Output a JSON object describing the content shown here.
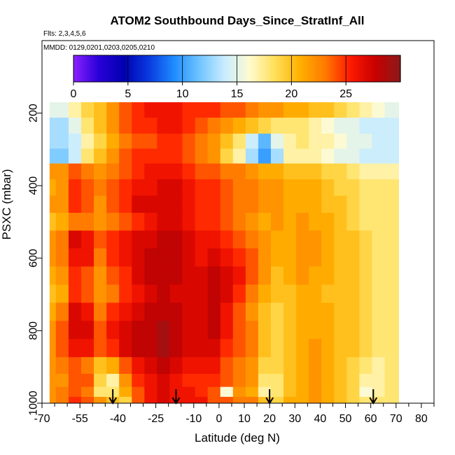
{
  "chart_data": {
    "type": "heatmap",
    "title": "ATOM2 Southbound Days_Since_StratInf_All",
    "flights_label": "Flts: 2,3,4,5,6",
    "dates_label": "MMDD: 0129,0201,0203,0205,0210",
    "xlabel": "Latitude (deg N)",
    "ylabel": "PSXC (mbar)",
    "xlim": [
      -70,
      85
    ],
    "ylim": [
      1000,
      0
    ],
    "x_ticks": [
      -70,
      -55,
      -40,
      -25,
      -10,
      0,
      10,
      20,
      30,
      40,
      50,
      60,
      70,
      80
    ],
    "x_minor_ticks": [
      -65,
      -60,
      -50,
      -45,
      -35,
      -30,
      -20,
      -15,
      -5,
      5,
      15,
      25,
      35,
      45,
      55,
      65,
      75,
      85
    ],
    "y_ticks": [
      200,
      400,
      600,
      800,
      1000
    ],
    "colorbar": {
      "range": [
        0,
        30
      ],
      "ticks": [
        0,
        5,
        10,
        15,
        20,
        25
      ],
      "colors": [
        "#8b21ff",
        "#2a00d9",
        "#0000b0",
        "#0a3ae0",
        "#1e8cff",
        "#6fc4ff",
        "#c8ecff",
        "#fffbd1",
        "#ffe05a",
        "#ffb000",
        "#ff7a00",
        "#ff1a00",
        "#c80000",
        "#8b1a1a"
      ]
    },
    "arrows_lat": [
      -42,
      -17,
      20,
      61
    ],
    "data_extent": {
      "lat_min": -67,
      "lat_max": 71,
      "p_top": 170,
      "p_bottom": 1000
    },
    "lat_bands": [
      {
        "lat": -67,
        "values": [
          15,
          13,
          13,
          12,
          22,
          21,
          22,
          20,
          22,
          22,
          21,
          20,
          21,
          22,
          22,
          22,
          22,
          22,
          22
        ]
      },
      {
        "lat": -62,
        "values": [
          15,
          13,
          13,
          12,
          22,
          22,
          22,
          21,
          23,
          23,
          22,
          21,
          23,
          24,
          24,
          23,
          22,
          23,
          23
        ]
      },
      {
        "lat": -57,
        "values": [
          17,
          15,
          14,
          14,
          24,
          25,
          25,
          23,
          27,
          26,
          25,
          25,
          27,
          27,
          26,
          24,
          24,
          24,
          25
        ]
      },
      {
        "lat": -52,
        "values": [
          19,
          18,
          17,
          18,
          23,
          24,
          24,
          23,
          26,
          26,
          24,
          24,
          26,
          27,
          26,
          23,
          24,
          23,
          24
        ]
      },
      {
        "lat": -47,
        "values": [
          20,
          20,
          19,
          20,
          22,
          23,
          22,
          22,
          24,
          23,
          22,
          22,
          23,
          24,
          24,
          20,
          19,
          18,
          22
        ]
      },
      {
        "lat": -42,
        "values": [
          22,
          22,
          21,
          22,
          23,
          24,
          24,
          23,
          25,
          25,
          24,
          23,
          25,
          26,
          25,
          21,
          17,
          18,
          20
        ]
      },
      {
        "lat": -37,
        "values": [
          24,
          24,
          23,
          24,
          24,
          25,
          25,
          24,
          26,
          26,
          25,
          25,
          26,
          27,
          27,
          24,
          22,
          21,
          19
        ]
      },
      {
        "lat": -32,
        "values": [
          25,
          25,
          24,
          25,
          25,
          26,
          27,
          25,
          27,
          27,
          27,
          26,
          27,
          28,
          28,
          26,
          25,
          24,
          24
        ]
      },
      {
        "lat": -27,
        "values": [
          26,
          25,
          24,
          25,
          26,
          26,
          27,
          26,
          27,
          28,
          28,
          27,
          28,
          28,
          28,
          27,
          26,
          26,
          26
        ]
      },
      {
        "lat": -22,
        "values": [
          26,
          26,
          25,
          25,
          26,
          27,
          27,
          27,
          28,
          28,
          28,
          28,
          28,
          29,
          29,
          28,
          27,
          27,
          27
        ]
      },
      {
        "lat": -17,
        "values": [
          26,
          26,
          25,
          25,
          26,
          27,
          27,
          27,
          28,
          28,
          28,
          27,
          28,
          28,
          28,
          27,
          26,
          26,
          26
        ]
      },
      {
        "lat": -12,
        "values": [
          25,
          25,
          24,
          24,
          25,
          26,
          26,
          26,
          27,
          27,
          27,
          27,
          27,
          27,
          27,
          26,
          25,
          26,
          26
        ]
      },
      {
        "lat": -7,
        "values": [
          25,
          24,
          23,
          23,
          24,
          25,
          25,
          25,
          26,
          26,
          27,
          27,
          27,
          27,
          27,
          26,
          25,
          25,
          26
        ]
      },
      {
        "lat": -2,
        "values": [
          25,
          23,
          22,
          22,
          24,
          25,
          25,
          25,
          26,
          27,
          28,
          28,
          28,
          28,
          27,
          26,
          25,
          24,
          24
        ]
      },
      {
        "lat": 3,
        "values": [
          24,
          22,
          20,
          19,
          23,
          24,
          24,
          24,
          25,
          26,
          27,
          27,
          26,
          26,
          25,
          24,
          24,
          16,
          24
        ]
      },
      {
        "lat": 8,
        "values": [
          24,
          21,
          18,
          17,
          23,
          23,
          23,
          23,
          24,
          25,
          26,
          25,
          24,
          24,
          24,
          23,
          23,
          22,
          23
        ]
      },
      {
        "lat": 13,
        "values": [
          23,
          20,
          14,
          13,
          22,
          23,
          23,
          22,
          23,
          24,
          24,
          23,
          22,
          23,
          23,
          22,
          22,
          21,
          23
        ]
      },
      {
        "lat": 18,
        "values": [
          22,
          19,
          11,
          10,
          21,
          22,
          22,
          21,
          22,
          22,
          22,
          21,
          20,
          20,
          20,
          19,
          18,
          17,
          20
        ]
      },
      {
        "lat": 23,
        "values": [
          22,
          18,
          15,
          13,
          21,
          22,
          22,
          22,
          21,
          21,
          20,
          20,
          19,
          19,
          19,
          19,
          18,
          18,
          19
        ]
      },
      {
        "lat": 28,
        "values": [
          21,
          18,
          17,
          17,
          20,
          21,
          21,
          21,
          21,
          21,
          21,
          20,
          20,
          20,
          20,
          20,
          20,
          20,
          21
        ]
      },
      {
        "lat": 33,
        "values": [
          21,
          18,
          18,
          17,
          20,
          21,
          21,
          22,
          22,
          22,
          22,
          21,
          21,
          21,
          21,
          21,
          21,
          21,
          21
        ]
      },
      {
        "lat": 38,
        "values": [
          20,
          17,
          17,
          17,
          20,
          21,
          21,
          21,
          22,
          22,
          21,
          21,
          21,
          21,
          22,
          22,
          22,
          22,
          22
        ]
      },
      {
        "lat": 43,
        "values": [
          20,
          16,
          17,
          16,
          19,
          20,
          20,
          21,
          21,
          21,
          21,
          20,
          21,
          21,
          21,
          21,
          21,
          21,
          21
        ]
      },
      {
        "lat": 48,
        "values": [
          19,
          15,
          16,
          15,
          19,
          19,
          20,
          20,
          20,
          20,
          20,
          20,
          20,
          20,
          20,
          20,
          20,
          20,
          20
        ]
      },
      {
        "lat": 53,
        "values": [
          18,
          15,
          15,
          15,
          18,
          19,
          19,
          19,
          20,
          20,
          20,
          20,
          20,
          20,
          20,
          19,
          19,
          19,
          19
        ]
      },
      {
        "lat": 58,
        "values": [
          17,
          14,
          15,
          14,
          17,
          18,
          18,
          18,
          19,
          19,
          19,
          19,
          19,
          19,
          19,
          18,
          17,
          16,
          18
        ]
      },
      {
        "lat": 63,
        "values": [
          16,
          14,
          14,
          14,
          17,
          18,
          18,
          18,
          18,
          18,
          18,
          18,
          18,
          18,
          18,
          17,
          17,
          17,
          18
        ]
      },
      {
        "lat": 68,
        "values": [
          15,
          14,
          14,
          14,
          17,
          18,
          18,
          18,
          18,
          18,
          18,
          18,
          18,
          18,
          18,
          18,
          18,
          18,
          18
        ]
      }
    ],
    "pressure_levels": [
      190,
      235,
      278,
      318,
      360,
      405,
      450,
      500,
      548,
      598,
      648,
      698,
      748,
      798,
      848,
      898,
      940,
      970,
      995
    ]
  }
}
